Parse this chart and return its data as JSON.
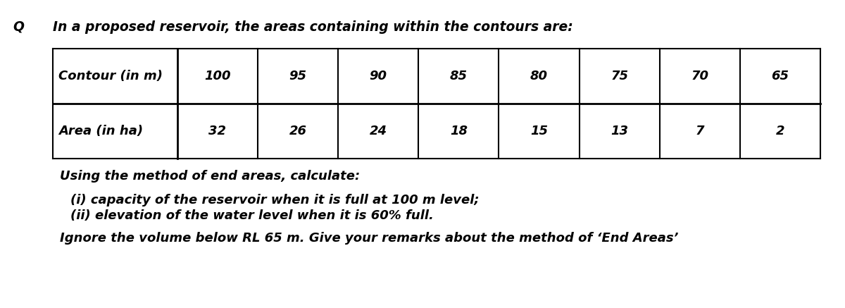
{
  "title_q": "Q",
  "title_text": "In a proposed reservoir, the areas containing within the contours are:",
  "col_header_1": "Contour (in m)",
  "col_header_2": "Area (in ha)",
  "contour_values": [
    "100",
    "95",
    "90",
    "85",
    "80",
    "75",
    "70",
    "65"
  ],
  "area_values": [
    "32",
    "26",
    "24",
    "18",
    "15",
    "13",
    "7",
    "2"
  ],
  "line1": "Using the method of end areas, calculate:",
  "line2": "(i) capacity of the reservoir when it is full at 100 m level;",
  "line3": "(ii) elevation of the water level when it is 60% full.",
  "line4": "Ignore the volume below RL 65 m. Give your remarks about the method of ‘End Areas’",
  "bg_color": "#ffffff",
  "text_color": "#000000",
  "table_border_color": "#000000",
  "font_size_title": 13.5,
  "font_size_table": 13.0,
  "font_size_body": 13.0
}
